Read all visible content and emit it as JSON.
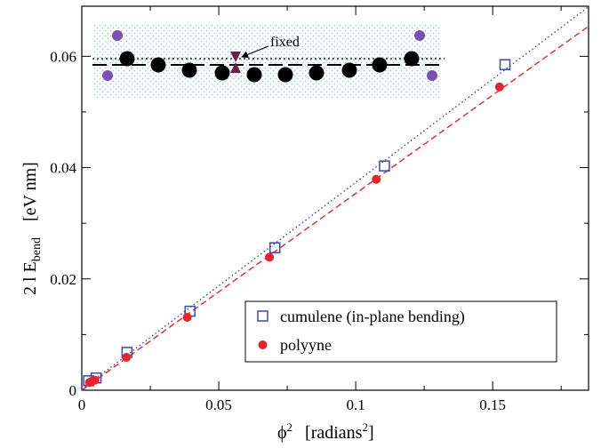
{
  "chart_data": {
    "type": "scatter",
    "xlim": [
      0,
      0.185
    ],
    "ylim": [
      0,
      0.069
    ],
    "xticks": [
      {
        "value": 0,
        "label": "0"
      },
      {
        "value": 0.05,
        "label": "0.05"
      },
      {
        "value": 0.1,
        "label": "0.1"
      },
      {
        "value": 0.15,
        "label": "0.15"
      }
    ],
    "yticks": [
      {
        "value": 0,
        "label": "0"
      },
      {
        "value": 0.02,
        "label": "0.02"
      },
      {
        "value": 0.04,
        "label": "0.04"
      },
      {
        "value": 0.06,
        "label": "0.06"
      }
    ],
    "xlabel": {
      "main": "ϕ",
      "sup": "2",
      "unit_open": "[radians",
      "unit_sup": "2",
      "unit_close": "]"
    },
    "ylabel": {
      "main": "2 l E",
      "sub": "bend",
      "unit": "[eV nm]"
    },
    "grid": false,
    "legend": {
      "position": "bottom-right"
    },
    "series": [
      {
        "name": "cumulene (in-plane bending)",
        "marker": "open-square",
        "color": "#3a4aa8",
        "points": [
          [
            0.0025,
            0.0017
          ],
          [
            0.0052,
            0.0022
          ],
          [
            0.0165,
            0.0068
          ],
          [
            0.0395,
            0.0142
          ],
          [
            0.0705,
            0.0256
          ],
          [
            0.1105,
            0.0403
          ],
          [
            0.1545,
            0.0585
          ]
        ],
        "fit": {
          "style": "dotted",
          "x": [
            0,
            0.185
          ],
          "y": [
            0.0002,
            0.0689
          ]
        }
      },
      {
        "name": "polyyne",
        "marker": "filled-circle",
        "color": "#e8232a",
        "points": [
          [
            0.0028,
            0.0014
          ],
          [
            0.0036,
            0.0016
          ],
          [
            0.0048,
            0.0018
          ],
          [
            0.0163,
            0.0059
          ],
          [
            0.0385,
            0.0131
          ],
          [
            0.0685,
            0.0239
          ],
          [
            0.1075,
            0.0379
          ],
          [
            0.1525,
            0.0545
          ]
        ],
        "fit": {
          "style": "dashed",
          "x": [
            0,
            0.185
          ],
          "y": [
            0,
            0.0654
          ]
        }
      }
    ],
    "inset": {
      "annotation": "fixed"
    }
  }
}
